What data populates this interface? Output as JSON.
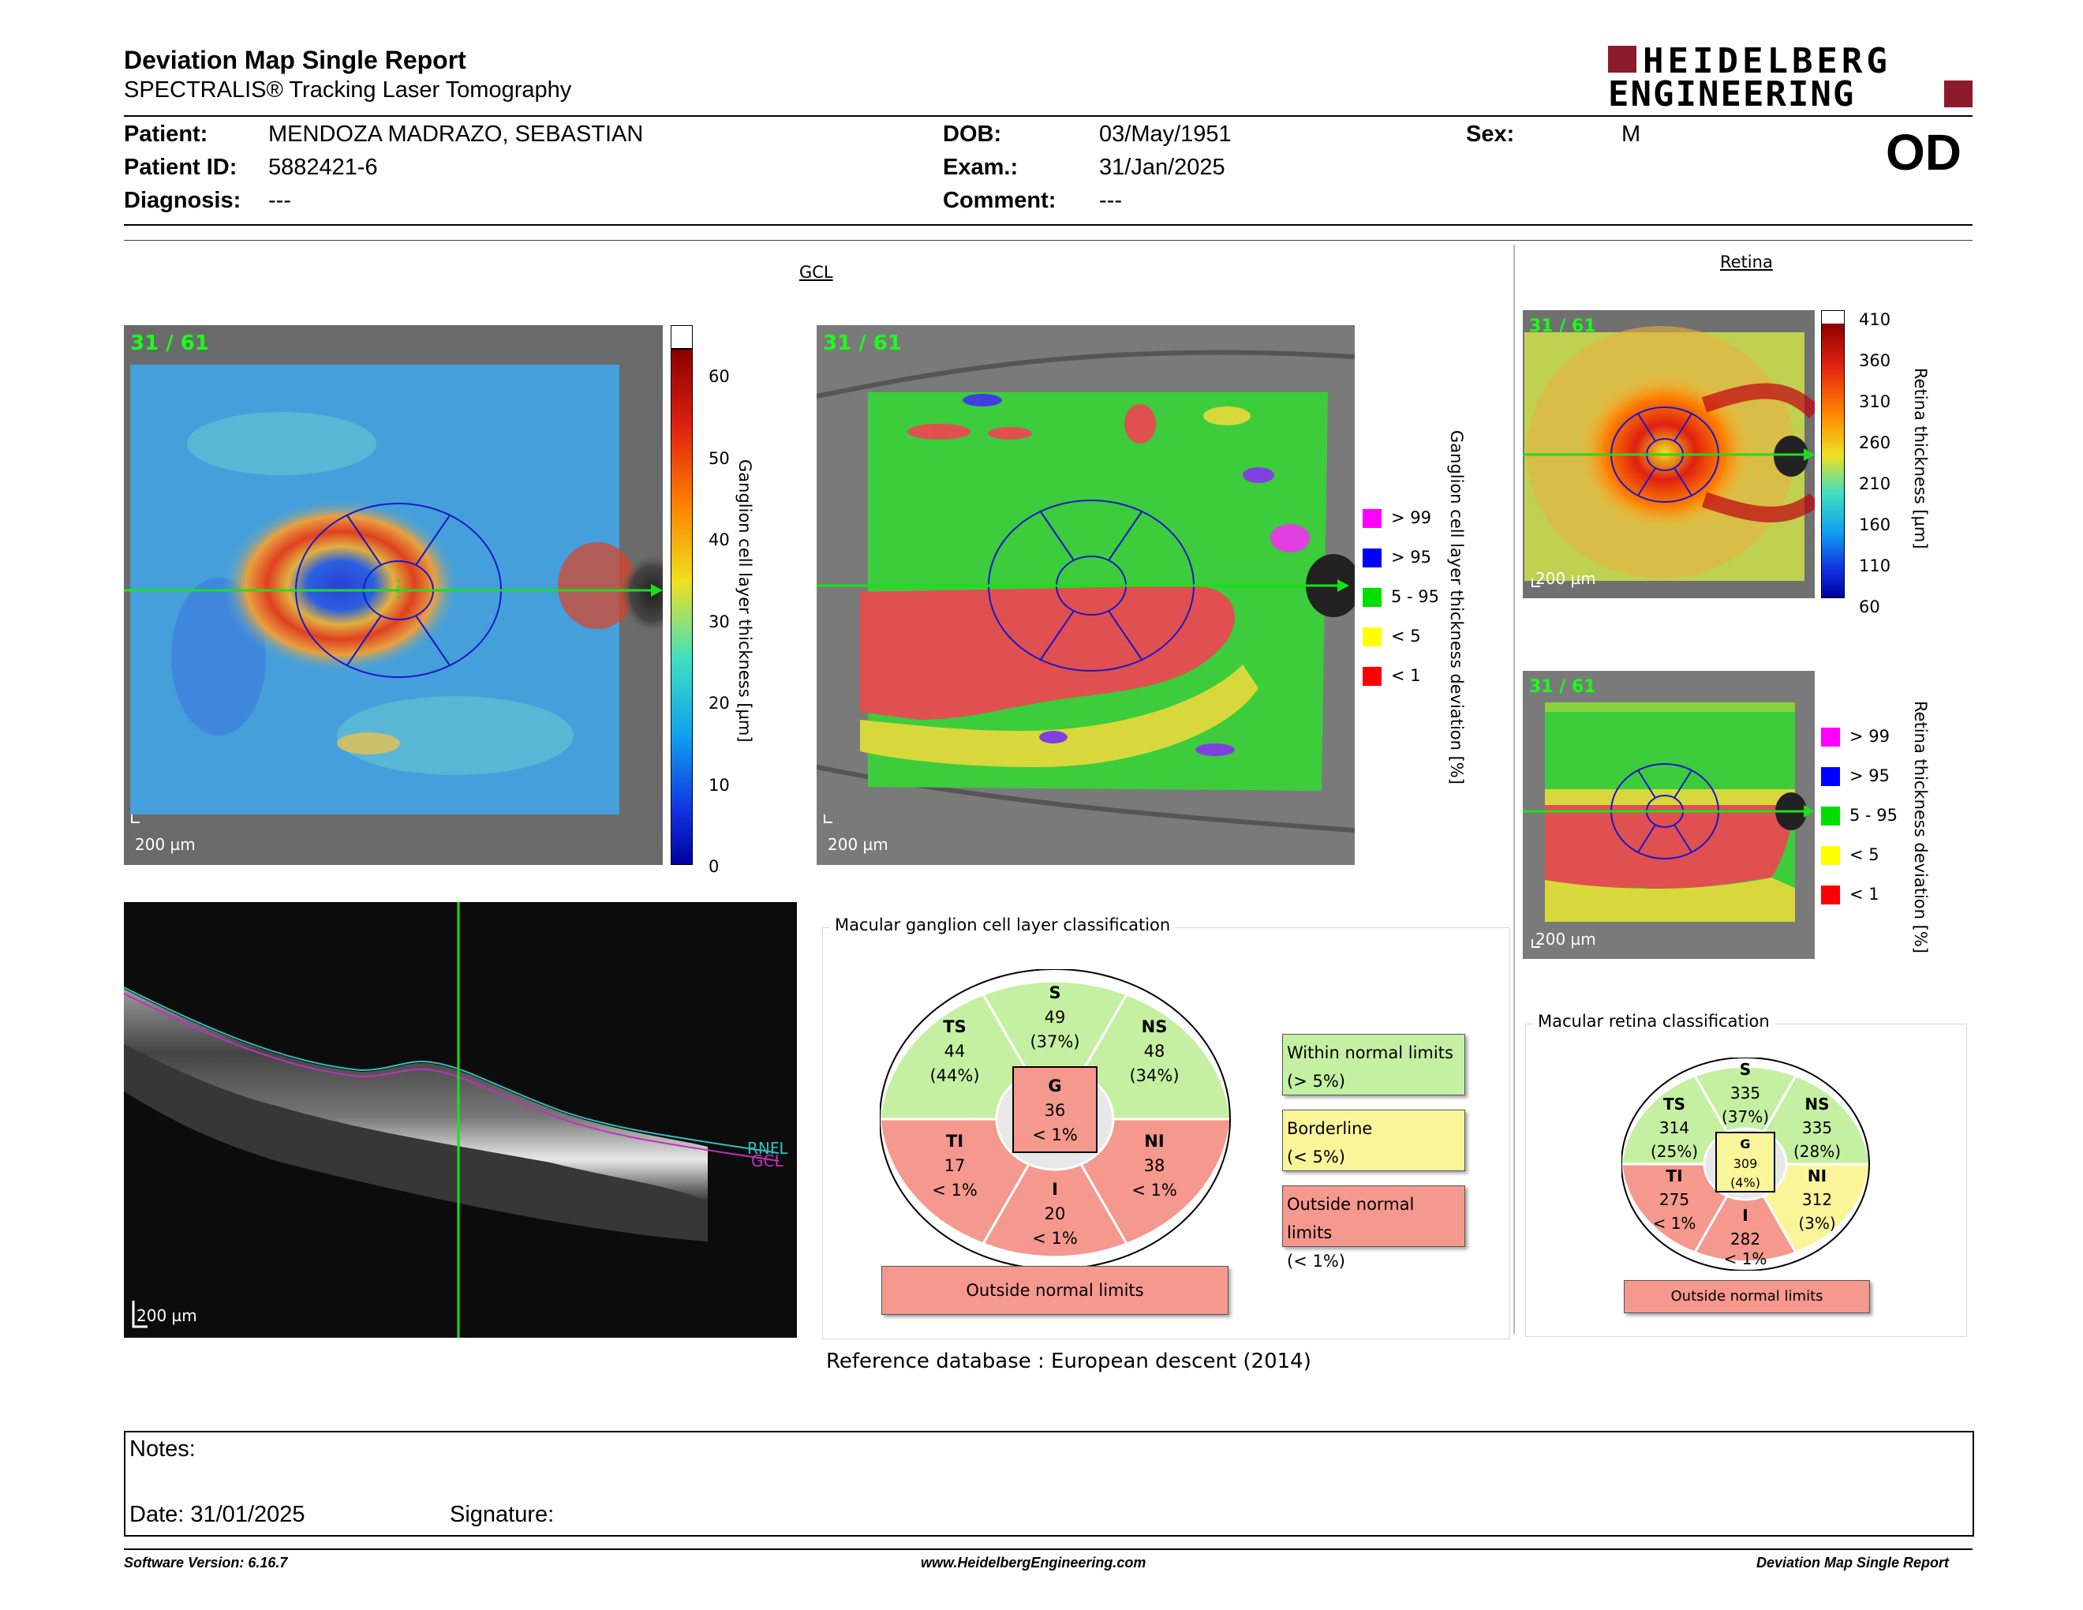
{
  "header": {
    "title": "Deviation Map Single Report",
    "subtitle": "SPECTRALIS® Tracking Laser Tomography",
    "logo_line1": "HEIDELBERG",
    "logo_line2": "ENGINEERING",
    "eye": "OD"
  },
  "patient": {
    "patient_label": "Patient:",
    "patient_value": "MENDOZA MADRAZO, SEBASTIAN",
    "id_label": "Patient ID:",
    "id_value": "5882421-6",
    "diag_label": "Diagnosis:",
    "diag_value": "---",
    "dob_label": "DOB:",
    "dob_value": "03/May/1951",
    "exam_label": "Exam.:",
    "exam_value": "31/Jan/2025",
    "comment_label": "Comment:",
    "comment_value": "---",
    "sex_label": "Sex:",
    "sex_value": "M"
  },
  "gcl": {
    "section_title": "GCL",
    "thickness_counter": "31 / 61",
    "deviation_counter": "31 / 61",
    "scale": "200 µm",
    "thickness_axis_title": "Ganglion cell layer thickness [µm]",
    "thickness_ticks": [
      "60",
      "50",
      "40",
      "30",
      "20",
      "10",
      "0"
    ],
    "deviation_axis_title": "Ganglion cell layer thickness deviation [%]",
    "legend": [
      {
        "label": "> 99",
        "color": "#ff00ff"
      },
      {
        "label": "> 95",
        "color": "#0000ff"
      },
      {
        "label": "5 - 95",
        "color": "#00e000"
      },
      {
        "label": "< 5",
        "color": "#ffff00"
      },
      {
        "label": "< 1",
        "color": "#ff0000"
      }
    ]
  },
  "oct": {
    "scale": "200 µm",
    "rnfl_label": "RNFL",
    "gcl_label": "GCL"
  },
  "gcl_classification": {
    "title": "Macular ganglion cell layer classification",
    "sectors": {
      "S": {
        "label": "S",
        "value": "49",
        "pct": "(37%)"
      },
      "TS": {
        "label": "TS",
        "value": "44",
        "pct": "(44%)"
      },
      "NS": {
        "label": "NS",
        "value": "48",
        "pct": "(34%)"
      },
      "TI": {
        "label": "TI",
        "value": "17",
        "pct": "< 1%"
      },
      "NI": {
        "label": "NI",
        "value": "38",
        "pct": "< 1%"
      },
      "I": {
        "label": "I",
        "value": "20",
        "pct": "< 1%"
      },
      "G": {
        "label": "G",
        "value": "36",
        "pct": "< 1%"
      }
    },
    "result": "Outside normal limits",
    "legend": [
      {
        "line1": "Within normal limits",
        "line2": "(> 5%)",
        "color": "#c5f0a2"
      },
      {
        "line1": "Borderline",
        "line2": "(< 5%)",
        "color": "#fbf59a"
      },
      {
        "line1": "Outside normal limits",
        "line2": "(< 1%)",
        "color": "#f5988d"
      }
    ],
    "reference": "Reference database :  European descent (2014)"
  },
  "retina": {
    "section_title": "Retina",
    "thickness_counter": "31 / 61",
    "deviation_counter": "31 / 61",
    "scale": "200 µm",
    "thickness_axis_title": "Retina thickness [µm]",
    "thickness_ticks": [
      "410",
      "360",
      "310",
      "260",
      "210",
      "160",
      "110",
      "60"
    ],
    "deviation_axis_title": "Retina thickness deviation [%]",
    "legend": [
      {
        "label": "> 99",
        "color": "#ff00ff"
      },
      {
        "label": "> 95",
        "color": "#0000ff"
      },
      {
        "label": "5 - 95",
        "color": "#00e000"
      },
      {
        "label": "< 5",
        "color": "#ffff00"
      },
      {
        "label": "< 1",
        "color": "#ff0000"
      }
    ]
  },
  "retina_classification": {
    "title": "Macular retina classification",
    "sectors": {
      "S": {
        "label": "S",
        "value": "335",
        "pct": "(37%)"
      },
      "TS": {
        "label": "TS",
        "value": "314",
        "pct": "(25%)"
      },
      "NS": {
        "label": "NS",
        "value": "335",
        "pct": "(28%)"
      },
      "TI": {
        "label": "TI",
        "value": "275",
        "pct": "< 1%"
      },
      "NI": {
        "label": "NI",
        "value": "312",
        "pct": "(3%)"
      },
      "I": {
        "label": "I",
        "value": "282",
        "pct": "< 1%"
      },
      "G": {
        "label": "G",
        "value": "309",
        "pct": "(4%)"
      }
    },
    "result": "Outside normal limits"
  },
  "notes": {
    "notes_label": "Notes:",
    "date_label": "Date: 31/01/2025",
    "signature_label": "Signature:"
  },
  "footer": {
    "software": "Software Version: 6.16.7",
    "website": "www.HeidelbergEngineering.com",
    "report": "Deviation Map Single Report"
  },
  "colors": {
    "within": "#c5f0a2",
    "borderline": "#fbf59a",
    "outside": "#f5988d",
    "logo": "#8b1a2b"
  }
}
